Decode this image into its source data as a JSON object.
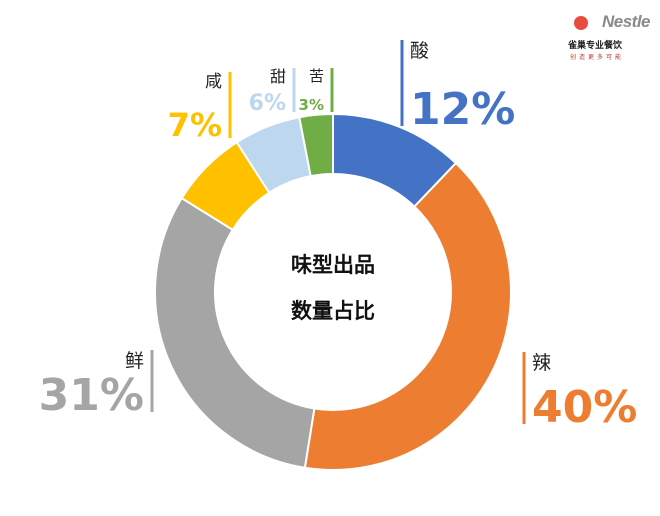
{
  "chart_data": {
    "type": "pie",
    "donut": true,
    "center_text": [
      "味型出品",
      "数量占比"
    ],
    "slices": [
      {
        "label": "酸",
        "value": 12,
        "value_text": "12%",
        "color": "#4472c4"
      },
      {
        "label": "辣",
        "value": 40,
        "value_text": "40%",
        "color": "#ed7d31"
      },
      {
        "label": "鲜",
        "value": 31,
        "value_text": "31%",
        "color": "#a5a5a5"
      },
      {
        "label": "咸",
        "value": 7,
        "value_text": "7%",
        "color": "#ffc000"
      },
      {
        "label": "甜",
        "value": 6,
        "value_text": "6%",
        "color": "#bdd7ee"
      },
      {
        "label": "苦",
        "value": 3,
        "value_text": "3%",
        "color": "#70ad47"
      }
    ]
  },
  "logo": {
    "brand": "Nestle",
    "cn_text": "雀巢专业餐饮",
    "sub_text": "创造更多可能"
  }
}
